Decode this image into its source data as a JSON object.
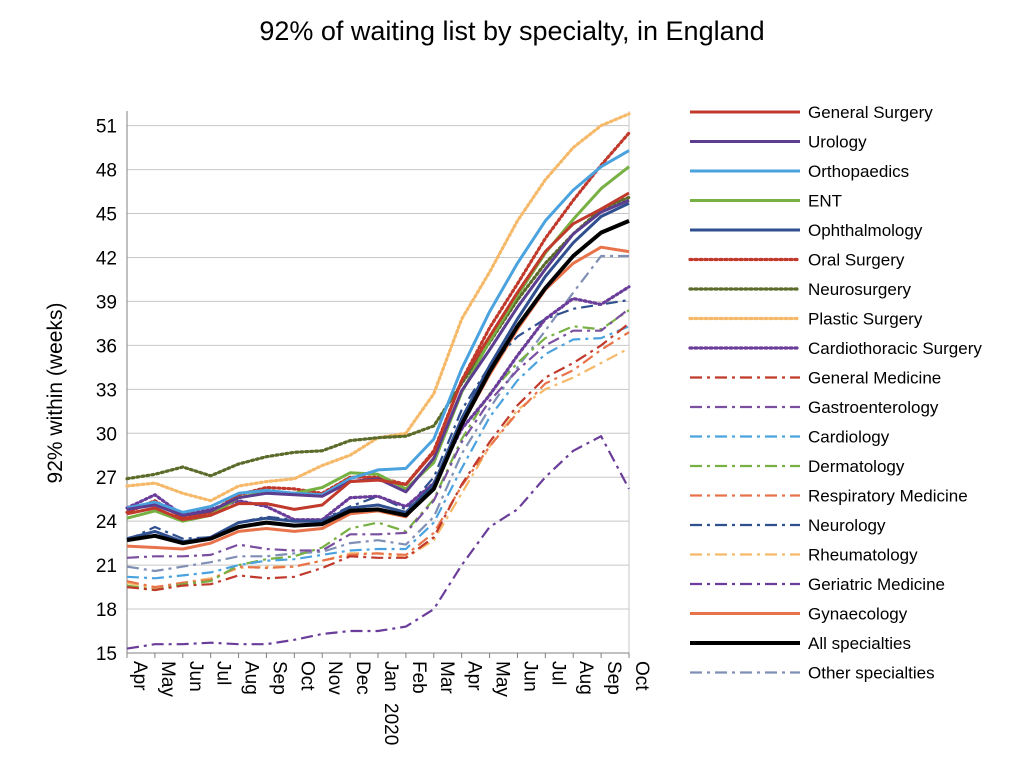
{
  "chart_data": {
    "type": "line",
    "title": "92% of waiting list by specialty, in England",
    "xlabel": "",
    "ylabel": "92% within (weeks)",
    "ylim": [
      15,
      52
    ],
    "yticks": [
      15,
      18,
      21,
      24,
      27,
      30,
      33,
      36,
      39,
      42,
      45,
      48,
      51
    ],
    "grid": "horizontal",
    "legend_position": "right",
    "categories": [
      "Apr",
      "May",
      "Jun",
      "Jul",
      "Aug",
      "Sep",
      "Oct",
      "Nov",
      "Dec",
      "Jan",
      "Feb",
      "Mar",
      "Apr",
      "May",
      "Jun",
      "Jul",
      "Aug",
      "Sep",
      "Oct"
    ],
    "year_marker": {
      "label": "2020",
      "category_index": 9
    },
    "series": [
      {
        "name": "General Surgery",
        "color": "#c0392b",
        "style": "solid",
        "values": [
          24.5,
          24.9,
          24.1,
          24.4,
          25.2,
          25.2,
          24.8,
          25.1,
          26.7,
          26.8,
          26.5,
          28.7,
          33.6,
          36.6,
          39.6,
          42.4,
          44.3,
          45.3,
          46.4
        ]
      },
      {
        "name": "Urology",
        "color": "#5c3d8f",
        "style": "solid",
        "values": [
          24.8,
          25.1,
          24.4,
          24.7,
          25.6,
          25.9,
          25.8,
          25.7,
          26.7,
          26.9,
          26.0,
          28.3,
          32.9,
          35.7,
          38.6,
          41.2,
          43.6,
          45.1,
          45.9
        ]
      },
      {
        "name": "Orthopaedics",
        "color": "#4aa3df",
        "style": "solid",
        "values": [
          24.9,
          25.3,
          24.6,
          25.0,
          25.9,
          26.1,
          25.9,
          25.8,
          26.9,
          27.5,
          27.6,
          29.6,
          34.4,
          38.3,
          41.6,
          44.5,
          46.6,
          48.2,
          49.3
        ]
      },
      {
        "name": "ENT",
        "color": "#77b043",
        "style": "solid",
        "values": [
          24.2,
          24.7,
          24.0,
          24.4,
          25.6,
          26.0,
          25.9,
          26.3,
          27.3,
          27.2,
          26.2,
          28.0,
          32.8,
          36.3,
          39.4,
          42.3,
          44.6,
          46.7,
          48.2
        ]
      },
      {
        "name": "Ophthalmology",
        "color": "#2f4f8f",
        "style": "solid",
        "values": [
          22.8,
          23.3,
          22.6,
          22.9,
          23.9,
          24.2,
          24.0,
          24.0,
          24.9,
          25.1,
          24.6,
          26.5,
          31.0,
          34.6,
          37.8,
          40.7,
          43.0,
          44.8,
          45.7
        ]
      },
      {
        "name": "Oral Surgery",
        "color": "#c0392b",
        "style": "dotted",
        "values": [
          24.6,
          25.4,
          24.2,
          24.6,
          25.8,
          26.3,
          26.2,
          25.9,
          27.0,
          27.0,
          26.5,
          28.8,
          33.6,
          37.2,
          40.2,
          43.3,
          45.9,
          48.3,
          50.5
        ]
      },
      {
        "name": "Neurosurgery",
        "color": "#5a6b2a",
        "style": "dotted",
        "values": [
          26.9,
          27.2,
          27.7,
          27.1,
          27.9,
          28.4,
          28.7,
          28.8,
          29.5,
          29.7,
          29.8,
          30.5,
          33.4,
          36.2,
          39.1,
          41.6,
          43.6,
          45.3,
          46.1
        ]
      },
      {
        "name": "Plastic Surgery",
        "color": "#f5b969",
        "style": "dotted",
        "values": [
          26.4,
          26.6,
          25.9,
          25.4,
          26.4,
          26.7,
          26.9,
          27.8,
          28.5,
          29.7,
          30.0,
          32.7,
          37.8,
          41.0,
          44.5,
          47.3,
          49.5,
          51.0,
          51.8
        ]
      },
      {
        "name": "Cardiothoracic Surgery",
        "color": "#6a3d9a",
        "style": "dotted",
        "values": [
          24.9,
          25.8,
          24.4,
          24.8,
          25.4,
          25.0,
          24.1,
          24.1,
          25.6,
          25.7,
          25.0,
          26.6,
          30.3,
          32.6,
          35.3,
          37.8,
          39.2,
          38.8,
          40.0
        ]
      },
      {
        "name": "General Medicine",
        "color": "#c0392b",
        "style": "dashdot",
        "values": [
          19.5,
          19.3,
          19.6,
          19.7,
          20.3,
          20.1,
          20.2,
          20.8,
          21.6,
          21.5,
          21.5,
          22.9,
          26.5,
          29.4,
          31.9,
          33.8,
          34.8,
          36.0,
          37.5
        ]
      },
      {
        "name": "Gastroenterology",
        "color": "#7b4fa0",
        "style": "dashdot",
        "values": [
          21.5,
          21.6,
          21.6,
          21.7,
          22.4,
          22.1,
          22.0,
          22.0,
          23.1,
          23.1,
          23.2,
          25.4,
          29.4,
          32.2,
          34.3,
          36.0,
          37.0,
          37.0,
          38.5
        ]
      },
      {
        "name": "Cardiology",
        "color": "#4aa3df",
        "style": "dashdot",
        "values": [
          20.2,
          20.1,
          20.3,
          20.5,
          21.0,
          21.3,
          21.4,
          21.7,
          22.0,
          22.1,
          22.1,
          23.9,
          27.6,
          31.1,
          33.6,
          35.4,
          36.4,
          36.5,
          37.3
        ]
      },
      {
        "name": "Dermatology",
        "color": "#77b043",
        "style": "dashdot",
        "values": [
          19.6,
          19.3,
          19.7,
          19.9,
          21.0,
          21.4,
          21.6,
          22.2,
          23.5,
          23.9,
          23.3,
          25.5,
          29.6,
          32.7,
          34.8,
          36.5,
          37.3,
          37.1,
          38.4
        ]
      },
      {
        "name": "Respiratory Medicine",
        "color": "#e8734a",
        "style": "dashdot",
        "values": [
          19.9,
          19.5,
          19.8,
          20.0,
          20.9,
          20.8,
          20.9,
          21.3,
          21.7,
          21.8,
          21.7,
          23.2,
          26.4,
          29.1,
          31.4,
          33.4,
          34.3,
          35.7,
          36.9
        ]
      },
      {
        "name": "Neurology",
        "color": "#2f4f8f",
        "style": "dashdot",
        "values": [
          22.7,
          23.6,
          22.8,
          22.9,
          23.9,
          24.3,
          24.1,
          24.1,
          25.0,
          25.7,
          24.8,
          27.0,
          31.6,
          34.6,
          36.6,
          37.8,
          38.5,
          38.8,
          39.1
        ]
      },
      {
        "name": "Rheumatology",
        "color": "#f5b969",
        "style": "dashdot",
        "values": [
          19.8,
          19.4,
          19.8,
          20.1,
          20.8,
          20.9,
          20.9,
          21.3,
          21.8,
          21.8,
          21.5,
          22.7,
          25.9,
          29.1,
          31.6,
          33.0,
          33.8,
          34.8,
          35.8
        ]
      },
      {
        "name": "Geriatric Medicine",
        "color": "#6a3d9a",
        "style": "dashdot",
        "values": [
          15.3,
          15.6,
          15.6,
          15.7,
          15.6,
          15.6,
          15.9,
          16.3,
          16.5,
          16.5,
          16.8,
          18.0,
          21.0,
          23.6,
          24.8,
          27.0,
          28.8,
          29.8,
          26.2
        ]
      },
      {
        "name": "Gynaecology",
        "color": "#e8734a",
        "style": "solid",
        "values": [
          22.3,
          22.2,
          22.1,
          22.5,
          23.3,
          23.5,
          23.3,
          23.5,
          24.5,
          24.7,
          24.3,
          26.4,
          30.6,
          34.0,
          37.1,
          39.8,
          41.6,
          42.7,
          42.4
        ]
      },
      {
        "name": "All specialties",
        "color": "#000000",
        "style": "solid-thick",
        "values": [
          22.7,
          23.0,
          22.5,
          22.8,
          23.6,
          23.9,
          23.7,
          23.8,
          24.7,
          24.8,
          24.4,
          26.2,
          30.6,
          34.2,
          37.3,
          39.9,
          42.1,
          43.7,
          44.5
        ]
      },
      {
        "name": "Other specialties",
        "color": "#7f8fb5",
        "style": "dashdot",
        "values": [
          20.9,
          20.6,
          20.9,
          21.2,
          21.6,
          21.6,
          21.8,
          21.9,
          22.5,
          22.7,
          22.4,
          24.3,
          28.6,
          31.7,
          34.5,
          37.0,
          39.6,
          42.1,
          42.1
        ]
      }
    ]
  }
}
